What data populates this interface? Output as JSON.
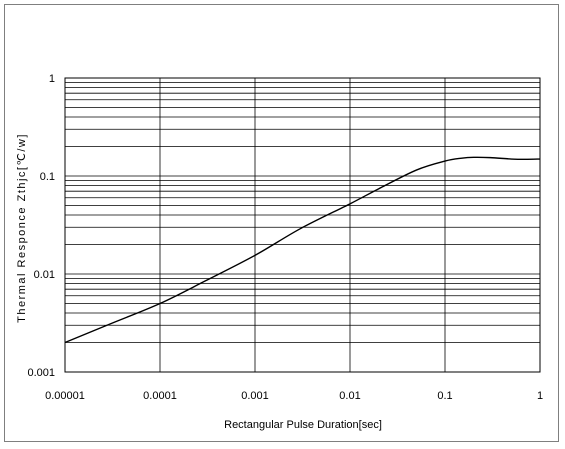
{
  "chart_data": {
    "type": "line",
    "title": "",
    "xlabel": "Rectangular Pulse Duration[sec]",
    "ylabel": "Thermal Responce Zthjc[℃/w]",
    "x_scale": "log",
    "y_scale": "log",
    "xlim": [
      1e-05,
      1
    ],
    "ylim": [
      0.001,
      1
    ],
    "x_tick_labels": [
      "0.00001",
      "0.0001",
      "0.001",
      "0.01",
      "0.1",
      "1"
    ],
    "y_tick_labels": [
      "0.001",
      "0.01",
      "0.1",
      "1"
    ],
    "grid": true,
    "legend": "none",
    "series": [
      {
        "color": "#000000",
        "x": [
          1e-05,
          3e-05,
          0.0001,
          0.0003,
          0.001,
          0.003,
          0.01,
          0.02,
          0.05,
          0.1,
          0.15,
          0.2,
          0.3,
          0.5,
          0.7,
          1
        ],
        "y": [
          0.002,
          0.0031,
          0.005,
          0.0085,
          0.0155,
          0.029,
          0.052,
          0.074,
          0.115,
          0.142,
          0.152,
          0.155,
          0.154,
          0.149,
          0.148,
          0.149
        ]
      }
    ]
  }
}
